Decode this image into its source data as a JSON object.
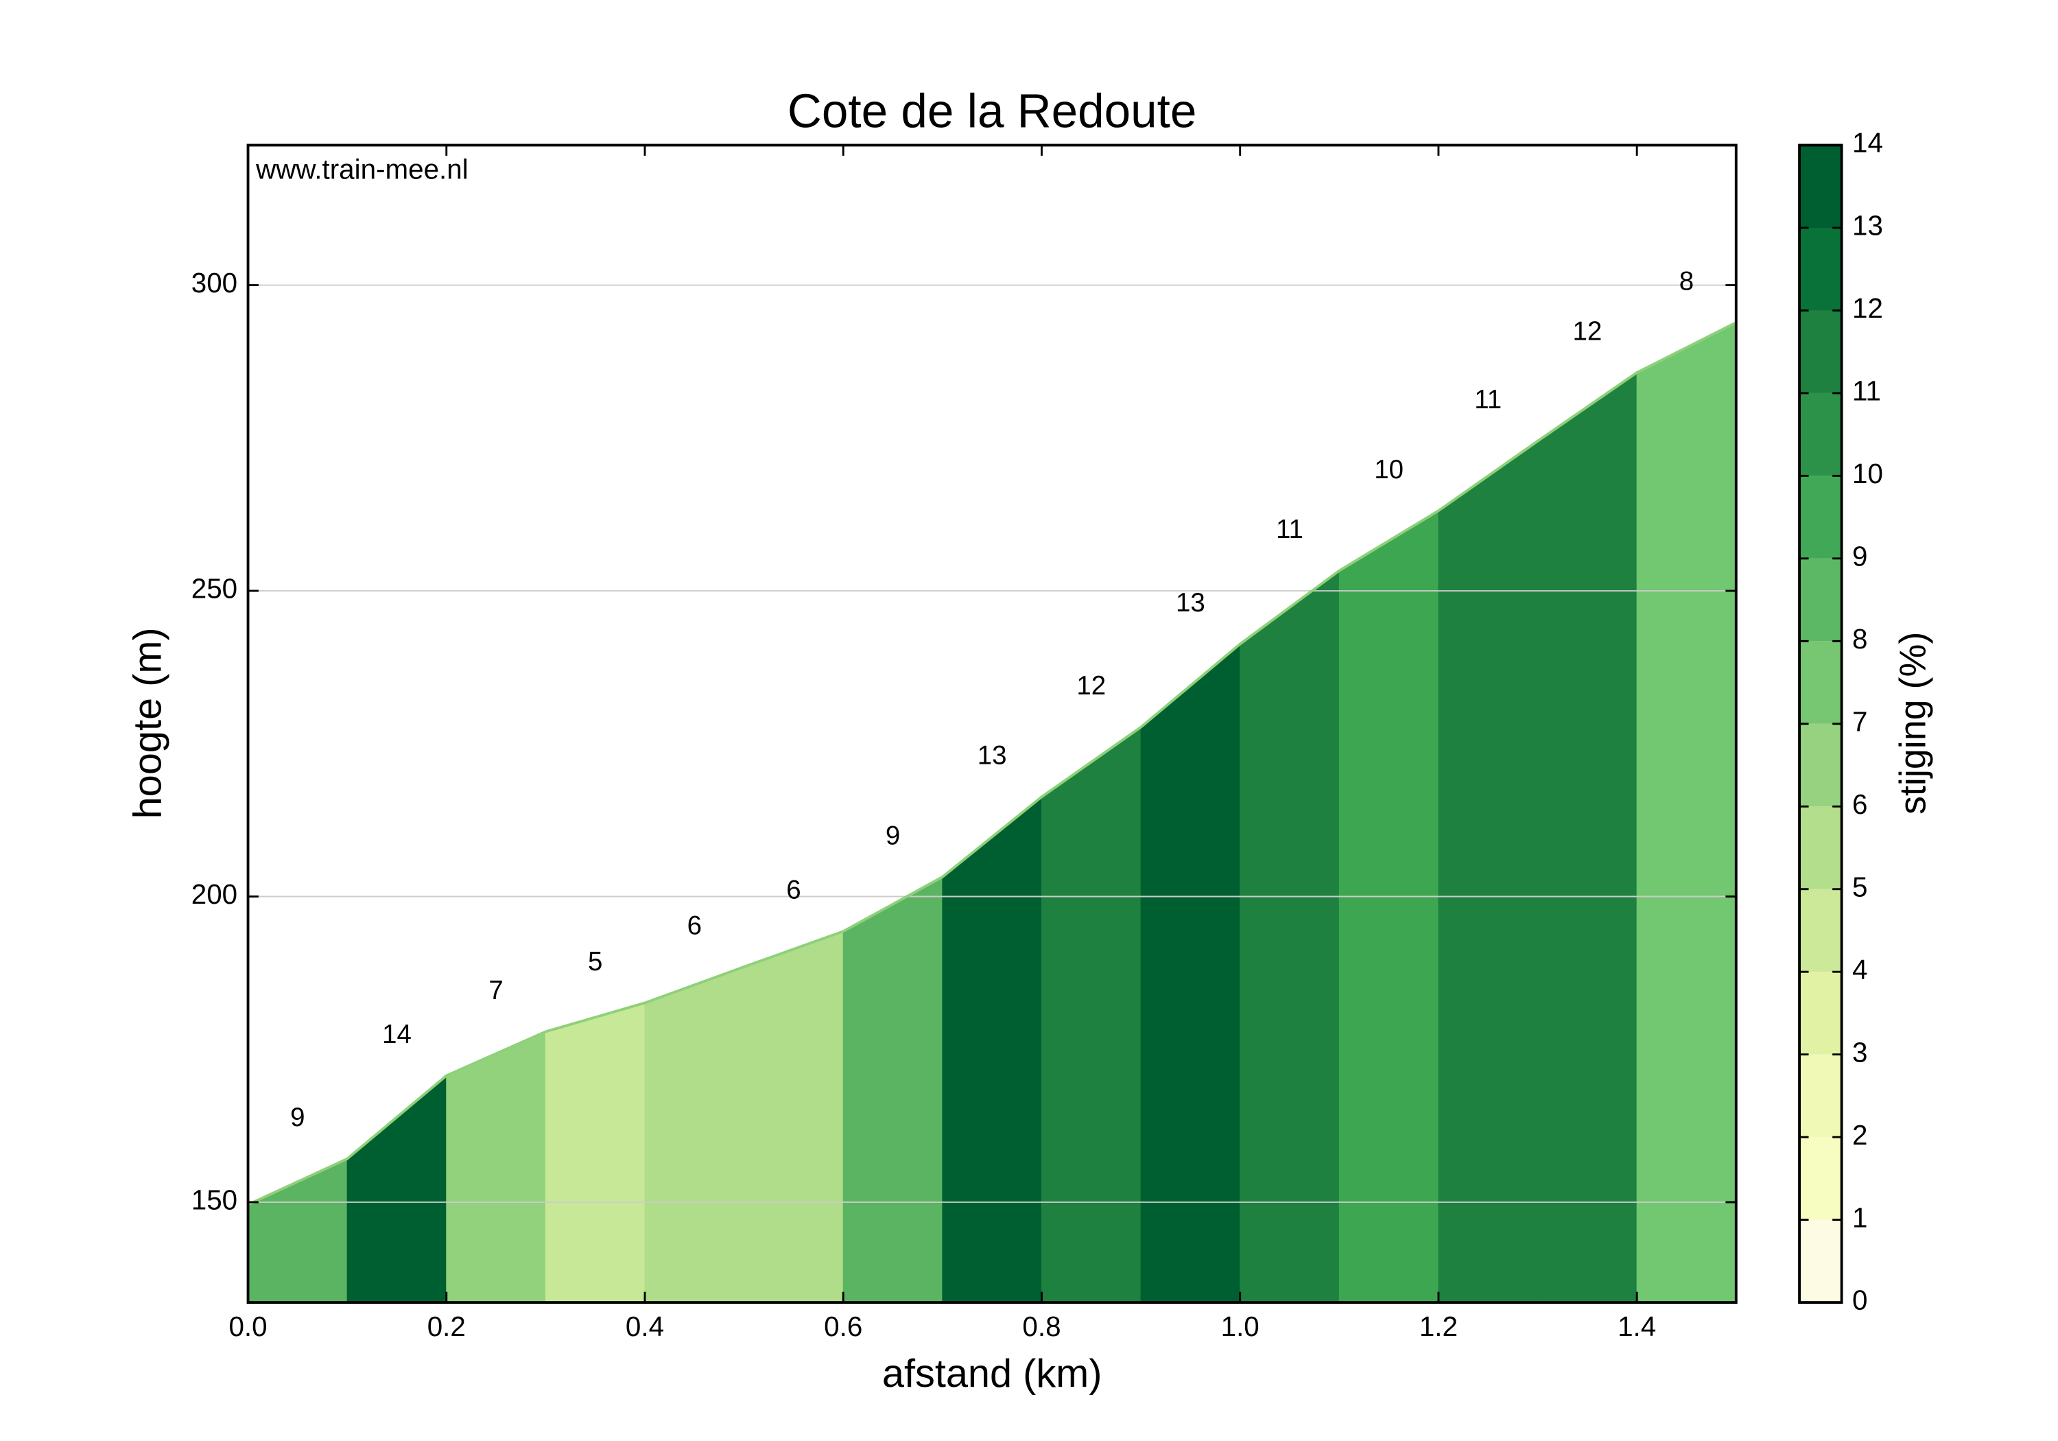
{
  "chart_data": {
    "type": "area",
    "title": "Cote de la Redoute",
    "xlabel": "afstand (km)",
    "ylabel": "hoogte (m)",
    "watermark": "www.train-mee.nl",
    "x": [
      0.0,
      0.1,
      0.2,
      0.3,
      0.4,
      0.5,
      0.6,
      0.7,
      0.8,
      0.9,
      1.0,
      1.1,
      1.2,
      1.3,
      1.4,
      1.5
    ],
    "values": [
      149.6,
      157.1,
      170.7,
      177.9,
      182.6,
      188.5,
      194.3,
      203.2,
      216.3,
      227.7,
      241.3,
      253.3,
      263.1,
      274.5,
      285.7,
      293.9
    ],
    "grades": [
      9,
      14,
      7,
      5,
      6,
      6,
      9,
      13,
      12,
      13,
      11,
      10,
      11,
      12,
      8
    ],
    "segment_colors": [
      "#5ab461",
      "#005f30",
      "#93d27c",
      "#c7e897",
      "#b0dd89",
      "#b0dd89",
      "#5ab461",
      "#005f30",
      "#1e8140",
      "#005f30",
      "#1e8140",
      "#3da651",
      "#1e8140",
      "#1e8140",
      "#72c771"
    ],
    "line_color": "#8fd07a",
    "xlim": [
      0,
      1.5
    ],
    "xticks": [
      {
        "value": 0,
        "label": "0.0"
      },
      {
        "value": 0.2,
        "label": "0.2"
      },
      {
        "value": 0.4,
        "label": "0.4"
      },
      {
        "value": 0.6,
        "label": "0.6"
      },
      {
        "value": 0.8,
        "label": "0.8"
      },
      {
        "value": 1.0,
        "label": "1.0"
      },
      {
        "value": 1.2,
        "label": "1.2"
      },
      {
        "value": 1.4,
        "label": "1.4"
      }
    ],
    "ylim": [
      133.6,
      322.9
    ],
    "yticks": [
      150,
      200,
      250,
      300
    ],
    "grid": true,
    "colorbar": {
      "label": "stijging (%)",
      "lim": [
        0,
        14
      ],
      "ticks": [
        0,
        1,
        2,
        3,
        4,
        5,
        6,
        7,
        8,
        9,
        10,
        11,
        12,
        13,
        14
      ],
      "colors": [
        "#fdfbe3",
        "#f7fcc0",
        "#f0f9b5",
        "#e2f2a5",
        "#cce999",
        "#b3de8b",
        "#96d27f",
        "#77c671",
        "#5cb864",
        "#40a856",
        "#2d9249",
        "#1e8140",
        "#087238",
        "#005f30"
      ]
    }
  }
}
